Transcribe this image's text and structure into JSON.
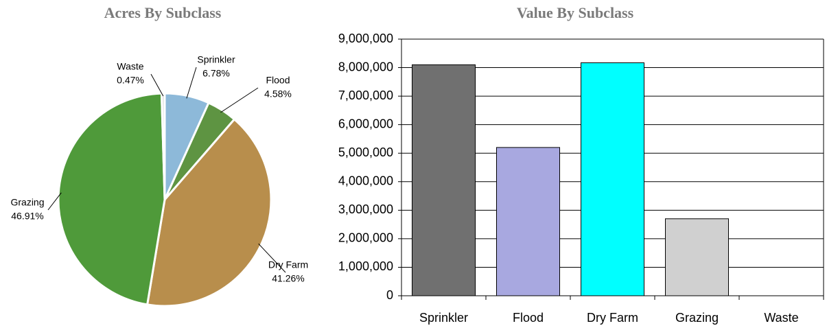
{
  "chart_data": [
    {
      "type": "pie",
      "title": "Acres By Subclass",
      "categories": [
        "Sprinkler",
        "Flood",
        "Dry Farm",
        "Grazing",
        "Waste"
      ],
      "values": [
        6.78,
        4.58,
        41.26,
        46.91,
        0.47
      ],
      "value_labels": [
        "6.78%",
        "4.58%",
        "41.26%",
        "46.91%",
        "0.47%"
      ],
      "colors": [
        "#8db9d9",
        "#5e9442",
        "#b88e4c",
        "#4f9a3a",
        "#dcdcdc"
      ]
    },
    {
      "type": "bar",
      "title": "Value By Subclass",
      "categories": [
        "Sprinkler",
        "Flood",
        "Dry Farm",
        "Grazing",
        "Waste"
      ],
      "values": [
        8100000,
        5200000,
        8170000,
        2700000,
        0
      ],
      "colors": [
        "#707070",
        "#a8a8e0",
        "#00ffff",
        "#d0d0d0",
        "#d0d0d0"
      ],
      "ylim": [
        0,
        9000000
      ],
      "yticks": [
        0,
        {
          "value": 1000000,
          "label": "1,000,000"
        },
        {
          "value": 2000000,
          "label": "2,000,000"
        },
        {
          "value": 3000000,
          "label": "3,000,000"
        },
        {
          "value": 4000000,
          "label": "4,000,000"
        },
        {
          "value": 5000000,
          "label": "5,000,000"
        },
        {
          "value": 6000000,
          "label": "6,000,000"
        },
        {
          "value": 7000000,
          "label": "7,000,000"
        },
        {
          "value": 8000000,
          "label": "8,000,000"
        },
        {
          "value": 9000000,
          "label": "9,000,000"
        }
      ],
      "grid": true
    }
  ]
}
